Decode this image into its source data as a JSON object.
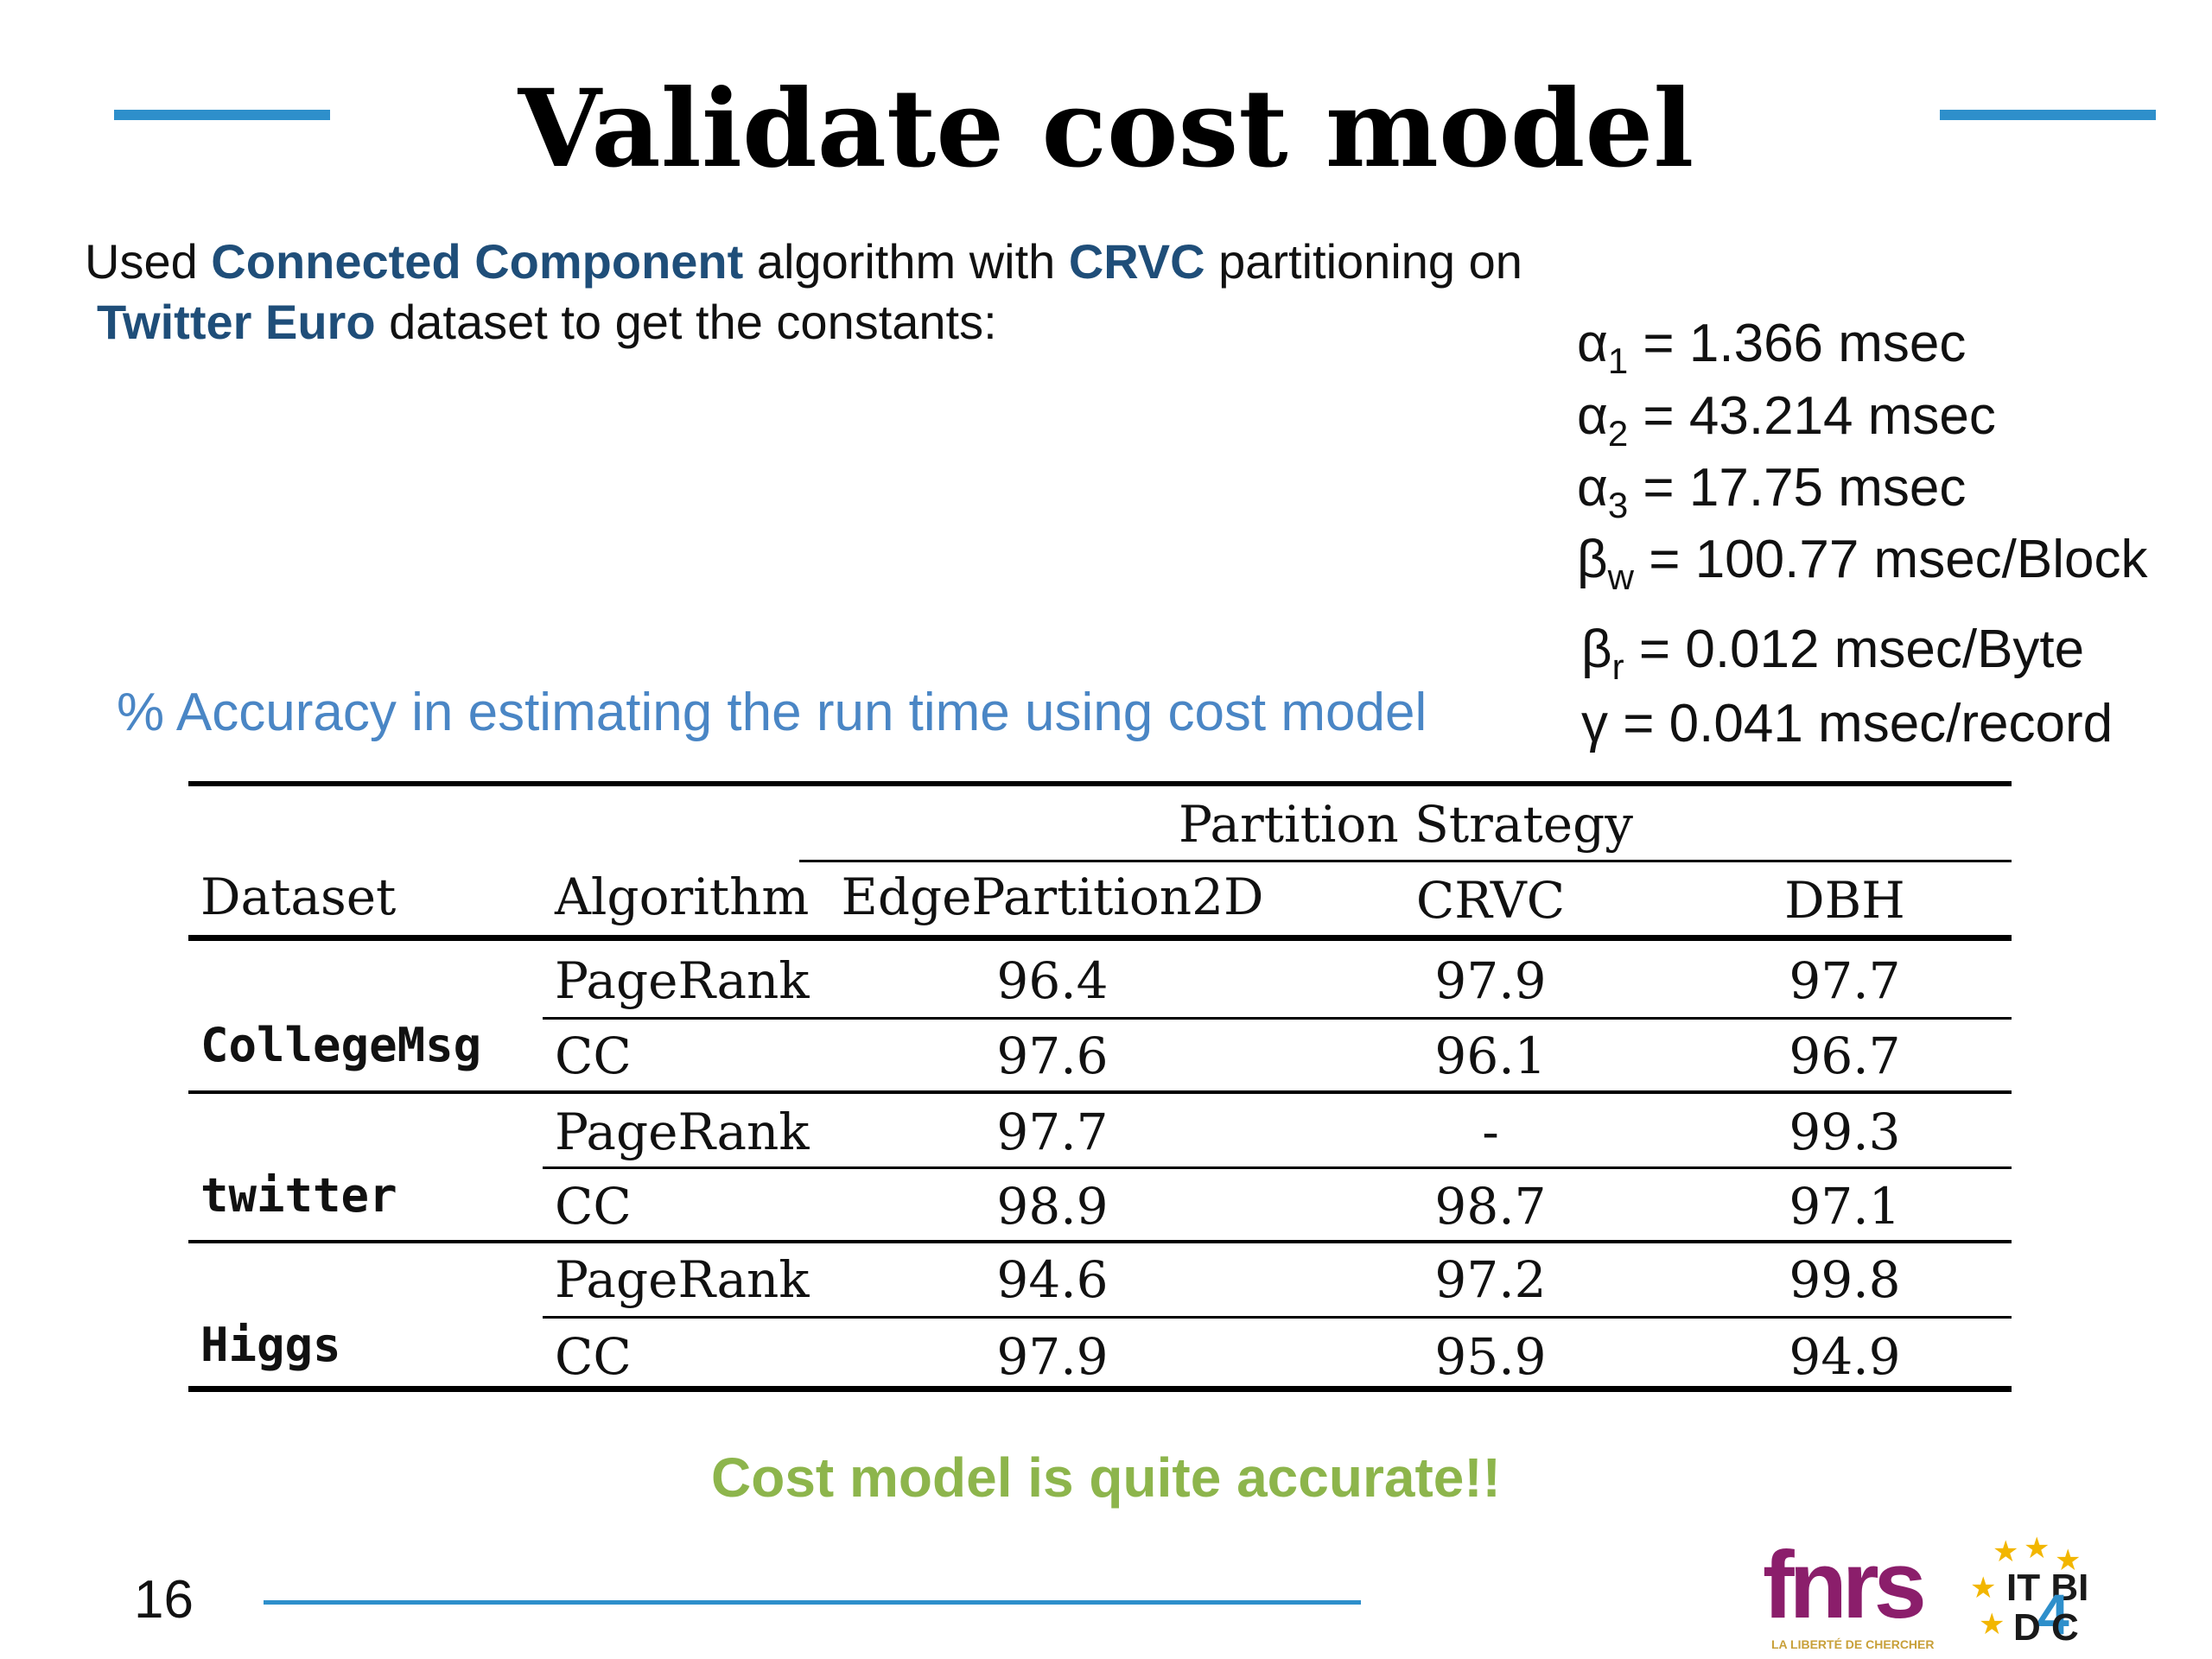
{
  "slide": {
    "title": "Validate cost model",
    "page_number": "16",
    "accent_color": "#2E8FCB"
  },
  "intro": {
    "p1": "Used ",
    "h1": "Connected Component",
    "p2": " algorithm with ",
    "h2": "CRVC",
    "p3": " partitioning on",
    "h3": "Twitter Euro",
    "p4": " dataset to get the constants:"
  },
  "constants": [
    {
      "symbol": "α",
      "sub": "1",
      "eq": " = ",
      "value": "1.366 msec"
    },
    {
      "symbol": "α",
      "sub": "2",
      "eq": " = ",
      "value": "43.214 msec"
    },
    {
      "symbol": "α",
      "sub": "3",
      "eq": " = ",
      "value": "17.75 msec"
    },
    {
      "symbol": "β",
      "sub": "w",
      "eq": " = ",
      "value": "100.77 msec/Block"
    },
    {
      "symbol": "β",
      "sub": "r",
      "eq": " = ",
      "value": "0.012 msec/Byte"
    },
    {
      "symbol": "γ",
      "sub": "",
      "eq": "  = ",
      "value": "0.041 msec/record"
    }
  ],
  "table": {
    "caption": "% Accuracy in estimating the run time using cost model",
    "group_header": "Partition Strategy",
    "headers": [
      "Dataset",
      "Algorithm",
      "EdgePartition2D",
      "CRVC",
      "DBH"
    ],
    "rows": [
      {
        "dataset": "CollegeMsg",
        "algorithm": "PageRank",
        "values": [
          "96.4",
          "97.9",
          "97.7"
        ]
      },
      {
        "dataset": "",
        "algorithm": "CC",
        "values": [
          "97.6",
          "96.1",
          "96.7"
        ]
      },
      {
        "dataset": "twitter",
        "algorithm": "PageRank",
        "values": [
          "97.7",
          "-",
          "99.3"
        ]
      },
      {
        "dataset": "",
        "algorithm": "CC",
        "values": [
          "98.9",
          "98.7",
          "97.1"
        ]
      },
      {
        "dataset": "Higgs",
        "algorithm": "PageRank",
        "values": [
          "94.6",
          "97.2",
          "99.8"
        ]
      },
      {
        "dataset": "",
        "algorithm": "CC",
        "values": [
          "97.9",
          "95.9",
          "94.9"
        ]
      }
    ]
  },
  "conclusion": "Cost model is quite accurate!!",
  "logos": {
    "fnrs": {
      "word": "fnrs",
      "tagline": "LA LIBERTÉ DE CHERCHER"
    },
    "itbi": {
      "top": "IT BI",
      "four": "4",
      "bottom": "D C"
    }
  }
}
